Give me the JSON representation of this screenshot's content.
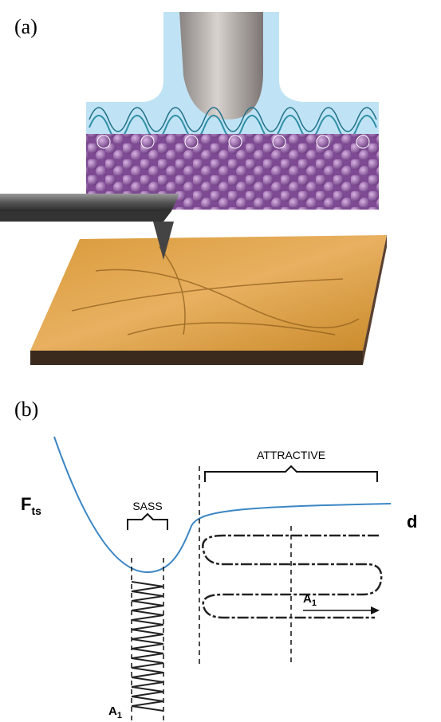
{
  "panel_a": {
    "label": "(a)"
  },
  "panel_b": {
    "label": "(b)",
    "y_axis_label": {
      "main": "F",
      "sub": "ts"
    },
    "x_axis_label": "d",
    "regions": {
      "sass": "SASS",
      "attractive": "ATTRACTIVE"
    },
    "amplitude_attractive": {
      "main": "A",
      "sub": "1"
    },
    "amplitude_sass": {
      "main": "A",
      "sub": "1"
    }
  }
}
